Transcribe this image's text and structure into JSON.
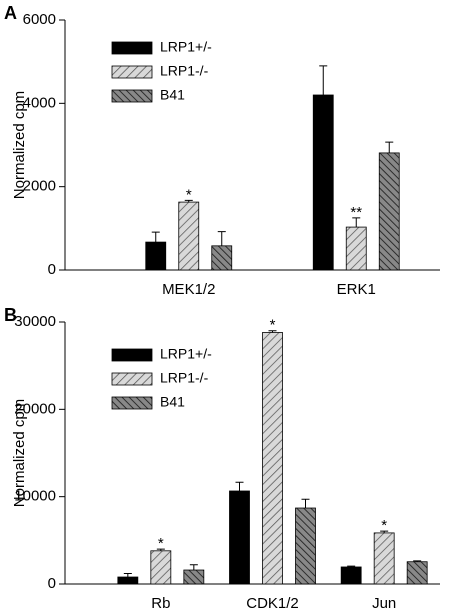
{
  "chart_data": [
    {
      "type": "bar",
      "panel": "A",
      "ylabel": "Normalized cpm",
      "categories": [
        "MEK1/2",
        "ERK1"
      ],
      "ylim": [
        0,
        6000
      ],
      "yticks": [
        0,
        2000,
        4000,
        6000
      ],
      "series": [
        {
          "name": "LRP1+/-",
          "color": "#000000",
          "values": [
            670,
            4200
          ],
          "errors": [
            240,
            700
          ]
        },
        {
          "name": "LRP1-/-",
          "color": "#d9d9d9",
          "values": [
            1630,
            1030
          ],
          "errors": [
            40,
            220
          ],
          "annotations": [
            "*",
            "**"
          ]
        },
        {
          "name": "B41",
          "color": "#666666",
          "values": [
            580,
            2810
          ],
          "errors": [
            340,
            260
          ]
        }
      ]
    },
    {
      "type": "bar",
      "panel": "B",
      "ylabel": "Normalized cpm",
      "categories": [
        "Rb",
        "CDK1/2",
        "Jun"
      ],
      "ylim": [
        0,
        30000
      ],
      "yticks": [
        0,
        10000,
        20000,
        30000
      ],
      "series": [
        {
          "name": "LRP1+/-",
          "color": "#000000",
          "values": [
            800,
            10650,
            1950
          ],
          "errors": [
            400,
            1000,
            100
          ]
        },
        {
          "name": "LRP1-/-",
          "color": "#d9d9d9",
          "values": [
            3800,
            28800,
            5850
          ],
          "errors": [
            200,
            200,
            200
          ],
          "annotations": [
            "*",
            "*",
            "*"
          ]
        },
        {
          "name": "B41",
          "color": "#666666",
          "values": [
            1600,
            8700,
            2550
          ],
          "errors": [
            600,
            1000,
            100
          ]
        }
      ]
    }
  ]
}
